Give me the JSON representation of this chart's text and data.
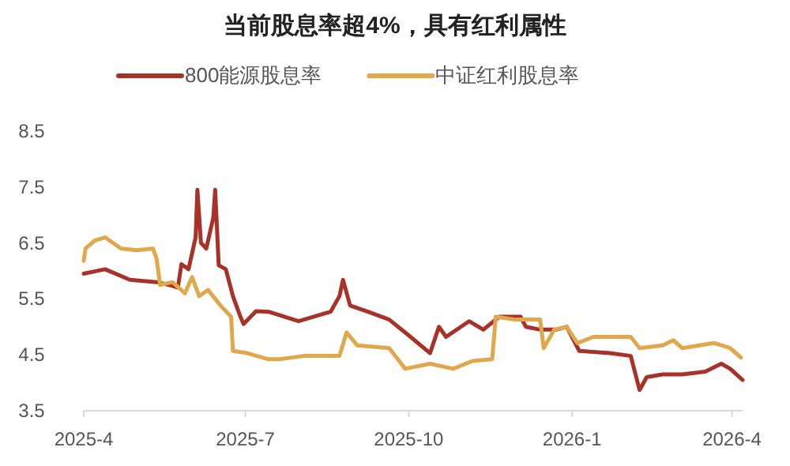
{
  "chart_data": {
    "type": "line",
    "title": "当前股息率超4%，具有红利属性",
    "legend": "top",
    "grid": false,
    "xlim": [
      "2025-04-01",
      "2026-04-07"
    ],
    "xticks": [
      {
        "value": "2025-04-01",
        "label": "2025-4"
      },
      {
        "value": "2025-07-01",
        "label": "2025-7"
      },
      {
        "value": "2025-10-01",
        "label": "2025-10"
      },
      {
        "value": "2026-01-01",
        "label": "2026-1"
      },
      {
        "value": "2026-04-01",
        "label": "2026-4"
      }
    ],
    "ylim": [
      3.5,
      8.5
    ],
    "yticks": [
      3.5,
      4.5,
      5.5,
      6.5,
      7.5,
      8.5
    ],
    "series": [
      {
        "name": "800能源股息率",
        "color": "#a83228",
        "x": [
          "2025-04-01",
          "2025-04-13",
          "2025-04-27",
          "2025-05-12",
          "2025-05-19",
          "2025-05-24",
          "2025-05-26",
          "2025-05-30",
          "2025-06-03",
          "2025-06-04",
          "2025-06-06",
          "2025-06-09",
          "2025-06-13",
          "2025-06-14",
          "2025-06-16",
          "2025-06-20",
          "2025-06-24",
          "2025-06-28",
          "2025-06-30",
          "2025-07-07",
          "2025-07-14",
          "2025-07-31",
          "2025-08-18",
          "2025-08-23",
          "2025-08-25",
          "2025-08-29",
          "2025-09-08",
          "2025-09-20",
          "2025-10-02",
          "2025-10-13",
          "2025-10-18",
          "2025-10-22",
          "2025-11-04",
          "2025-11-12",
          "2025-11-21",
          "2025-12-03",
          "2025-12-06",
          "2025-12-14",
          "2025-12-23",
          "2025-12-29",
          "2026-01-05",
          "2026-01-22",
          "2026-02-03",
          "2026-02-08",
          "2026-02-12",
          "2026-02-21",
          "2026-03-04",
          "2026-03-17",
          "2026-03-26",
          "2026-03-31",
          "2026-04-07"
        ],
        "values": [
          5.95,
          6.03,
          5.84,
          5.8,
          5.75,
          5.7,
          6.12,
          6.03,
          6.6,
          7.45,
          6.5,
          6.4,
          6.96,
          7.45,
          6.1,
          6.03,
          5.55,
          5.2,
          5.05,
          5.28,
          5.27,
          5.1,
          5.27,
          5.55,
          5.84,
          5.38,
          5.27,
          5.13,
          4.82,
          4.53,
          5.0,
          4.82,
          5.1,
          4.95,
          5.18,
          5.18,
          5.0,
          4.95,
          4.95,
          5.0,
          4.57,
          4.53,
          4.48,
          3.87,
          4.1,
          4.15,
          4.15,
          4.2,
          4.34,
          4.25,
          4.05
        ]
      },
      {
        "name": "中证红利股息率",
        "color": "#e0a84a",
        "x": [
          "2025-04-01",
          "2025-04-02",
          "2025-04-07",
          "2025-04-13",
          "2025-04-22",
          "2025-05-01",
          "2025-05-10",
          "2025-05-12",
          "2025-05-14",
          "2025-05-21",
          "2025-05-28",
          "2025-06-01",
          "2025-06-05",
          "2025-06-10",
          "2025-06-17",
          "2025-06-23",
          "2025-06-24",
          "2025-07-02",
          "2025-07-14",
          "2025-07-20",
          "2025-08-03",
          "2025-08-23",
          "2025-08-27",
          "2025-09-02",
          "2025-09-20",
          "2025-09-29",
          "2025-10-13",
          "2025-10-26",
          "2025-11-06",
          "2025-11-17",
          "2025-11-19",
          "2025-11-30",
          "2025-12-14",
          "2025-12-16",
          "2025-12-22",
          "2025-12-29",
          "2026-01-04",
          "2026-01-13",
          "2026-02-03",
          "2026-02-08",
          "2026-02-21",
          "2026-02-27",
          "2026-03-04",
          "2026-03-22",
          "2026-03-31",
          "2026-04-06"
        ],
        "values": [
          6.18,
          6.4,
          6.54,
          6.6,
          6.4,
          6.37,
          6.4,
          6.22,
          5.75,
          5.8,
          5.6,
          5.89,
          5.55,
          5.66,
          5.38,
          5.18,
          4.57,
          4.53,
          4.42,
          4.42,
          4.48,
          4.48,
          4.9,
          4.67,
          4.62,
          4.25,
          4.34,
          4.25,
          4.39,
          4.42,
          5.18,
          5.13,
          5.13,
          4.62,
          4.95,
          5.0,
          4.71,
          4.82,
          4.82,
          4.62,
          4.67,
          4.76,
          4.62,
          4.71,
          4.62,
          4.45
        ]
      }
    ]
  }
}
